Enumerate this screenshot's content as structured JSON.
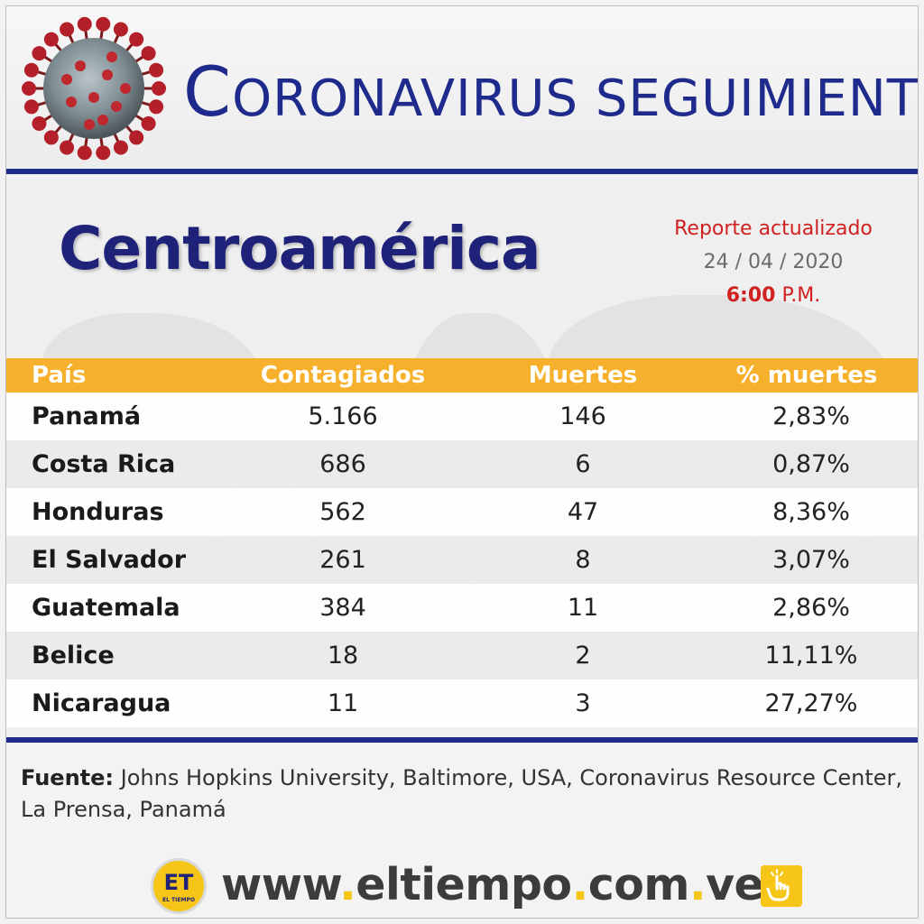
{
  "header": {
    "title_initial": "C",
    "title_rest": "ORONAVIRUS SEGUIMIENTO",
    "virus_icon": "coronavirus-icon"
  },
  "region": "Centroamérica",
  "report": {
    "label": "Reporte actualizado",
    "date": "24 / 04 / 2020",
    "hour": "6:00",
    "ampm": "P.M."
  },
  "table": {
    "headers": [
      "País",
      "Contagiados",
      "Muertes",
      "% muertes"
    ],
    "rows": [
      {
        "country": "Panamá",
        "cases": "5.166",
        "deaths": "146",
        "pct": "2,83%"
      },
      {
        "country": "Costa Rica",
        "cases": "686",
        "deaths": "6",
        "pct": "0,87%"
      },
      {
        "country": "Honduras",
        "cases": "562",
        "deaths": "47",
        "pct": "8,36%"
      },
      {
        "country": "El Salvador",
        "cases": "261",
        "deaths": "8",
        "pct": "3,07%"
      },
      {
        "country": "Guatemala",
        "cases": "384",
        "deaths": "11",
        "pct": "2,86%"
      },
      {
        "country": "Belice",
        "cases": "18",
        "deaths": "2",
        "pct": "11,11%"
      },
      {
        "country": "Nicaragua",
        "cases": "11",
        "deaths": "3",
        "pct": "27,27%"
      }
    ]
  },
  "source": {
    "label": "Fuente:",
    "text": "Johns Hopkins University, Baltimore, USA, Coronavirus Resource Center, La Prensa, Panamá"
  },
  "footer": {
    "logo_text": "ET",
    "logo_sub": "EL TIEMPO",
    "site_www": "www",
    "site_name": "eltiempo",
    "site_com": "com",
    "site_ve": "ve",
    "dot": ".",
    "click_icon": "hand-pointer-icon"
  },
  "colors": {
    "title_blue": "#1e2a8c",
    "header_orange": "#f7b02b",
    "accent_red": "#d02020",
    "brand_yellow": "#f5c518"
  }
}
